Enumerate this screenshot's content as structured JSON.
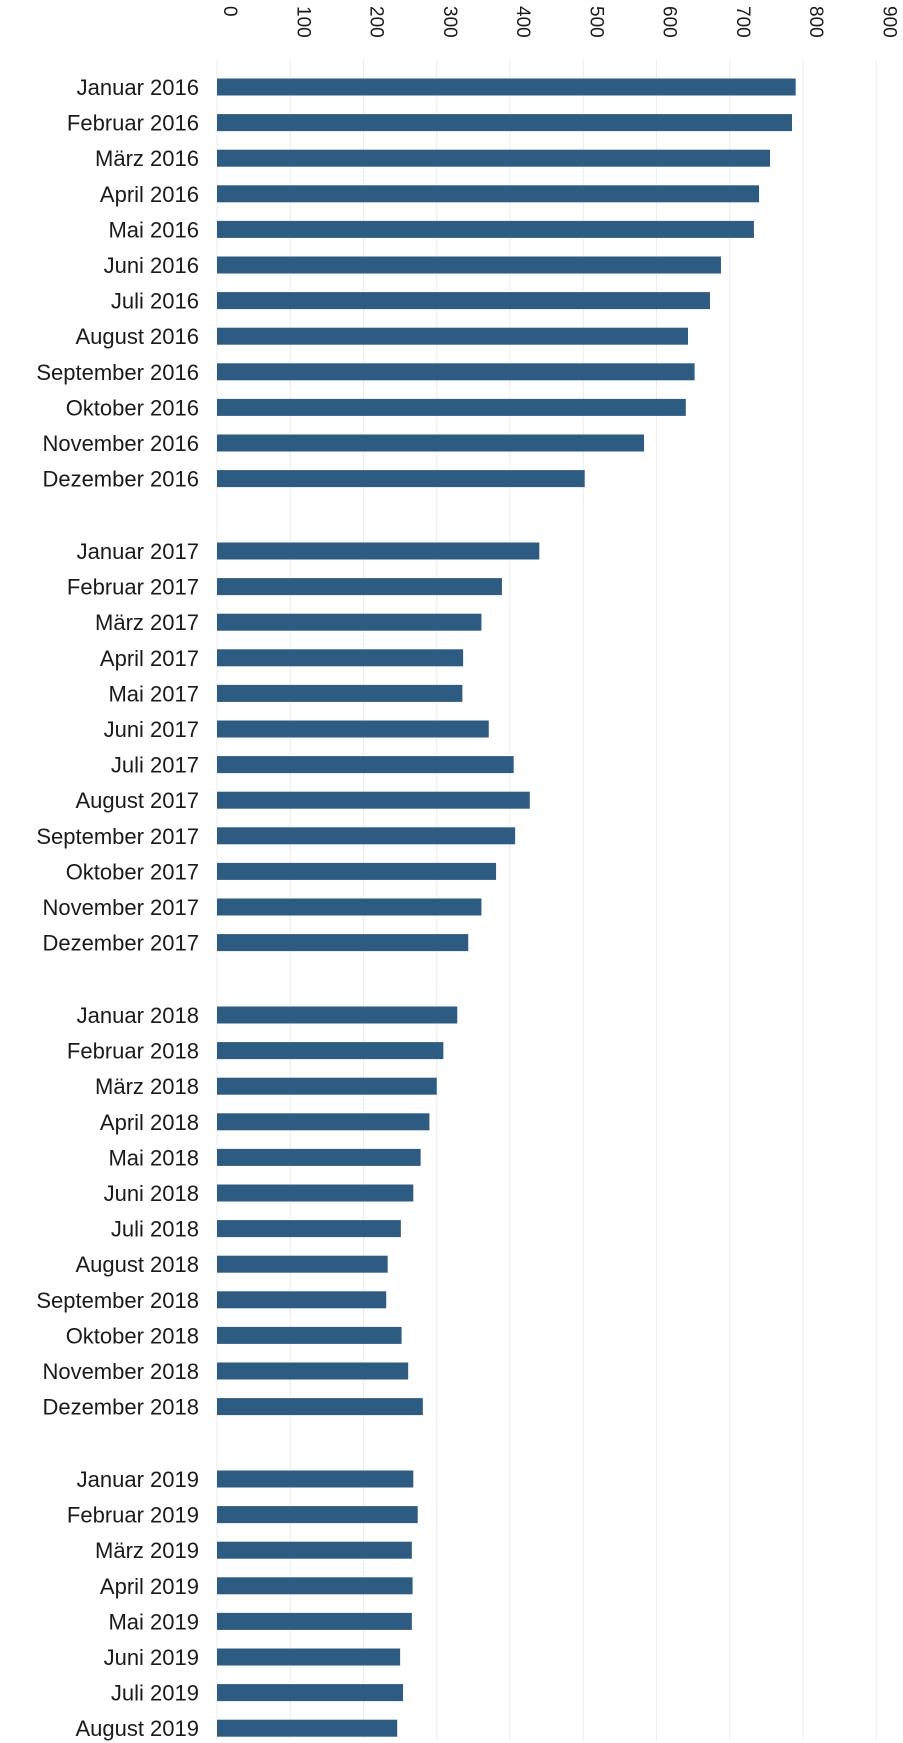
{
  "chart_data": {
    "type": "bar",
    "orientation": "horizontal",
    "xlim": [
      0,
      900
    ],
    "ticks": [
      0,
      100,
      200,
      300,
      400,
      500,
      600,
      700,
      800,
      900
    ],
    "tick_labels": [
      "0",
      "100",
      "200",
      "300",
      "400",
      "500",
      "600",
      "700",
      "800",
      "900"
    ],
    "tick_label_rotation": 90,
    "grid": true,
    "bar_color": "#2e5b82",
    "groups": [
      {
        "categories": [
          "Januar 2016",
          "Februar 2016",
          "März 2016",
          "April 2016",
          "Mai 2016",
          "Juni 2016",
          "Juli 2016",
          "August 2016",
          "September 2016",
          "Oktober 2016",
          "November 2016",
          "Dezember 2016"
        ],
        "values": [
          790,
          785,
          755,
          740,
          733,
          688,
          673,
          643,
          652,
          640,
          583,
          502
        ]
      },
      {
        "categories": [
          "Januar 2017",
          "Februar 2017",
          "März 2017",
          "April 2017",
          "Mai 2017",
          "Juni 2017",
          "Juli 2017",
          "August 2017",
          "September 2017",
          "Oktober 2017",
          "November 2017",
          "Dezember 2017"
        ],
        "values": [
          440,
          389,
          361,
          336,
          335,
          371,
          405,
          427,
          407,
          381,
          361,
          343
        ]
      },
      {
        "categories": [
          "Januar 2018",
          "Februar 2018",
          "März 2018",
          "April 2018",
          "Mai 2018",
          "Juni 2018",
          "Juli 2018",
          "August 2018",
          "September 2018",
          "Oktober 2018",
          "November 2018",
          "Dezember 2018"
        ],
        "values": [
          328,
          309,
          300,
          290,
          278,
          268,
          251,
          233,
          231,
          252,
          261,
          281
        ]
      },
      {
        "categories": [
          "Januar 2019",
          "Februar 2019",
          "März 2019",
          "April 2019",
          "Mai 2019",
          "Juni 2019",
          "Juli 2019",
          "August 2019"
        ],
        "values": [
          268,
          274,
          266,
          267,
          266,
          250,
          254,
          246
        ]
      }
    ]
  }
}
